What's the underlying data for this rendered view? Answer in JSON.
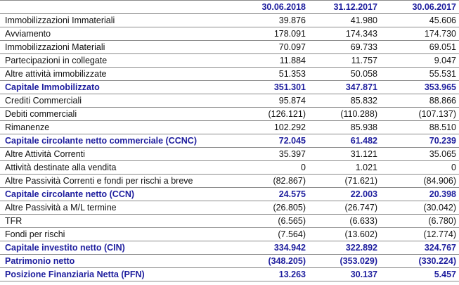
{
  "table": {
    "columns": [
      "30.06.2018",
      "31.12.2017",
      "30.06.2017"
    ],
    "rows": [
      {
        "label": "Immobilizzazioni Immateriali",
        "values": [
          "39.876",
          "41.980",
          "45.606"
        ],
        "emphasis": false
      },
      {
        "label": "Avviamento",
        "values": [
          "178.091",
          "174.343",
          "174.730"
        ],
        "emphasis": false
      },
      {
        "label": "Immobilizzazioni Materiali",
        "values": [
          "70.097",
          "69.733",
          "69.051"
        ],
        "emphasis": false
      },
      {
        "label": "Partecipazioni in collegate",
        "values": [
          "11.884",
          "11.757",
          "9.047"
        ],
        "emphasis": false
      },
      {
        "label": "Altre attività immobilizzate",
        "values": [
          "51.353",
          "50.058",
          "55.531"
        ],
        "emphasis": false
      },
      {
        "label": "Capitale Immobilizzato",
        "values": [
          "351.301",
          "347.871",
          "353.965"
        ],
        "emphasis": true
      },
      {
        "label": "Crediti Commerciali",
        "values": [
          "95.874",
          "85.832",
          "88.866"
        ],
        "emphasis": false
      },
      {
        "label": "Debiti commerciali",
        "values": [
          "(126.121)",
          "(110.288)",
          "(107.137)"
        ],
        "emphasis": false
      },
      {
        "label": "Rimanenze",
        "values": [
          "102.292",
          "85.938",
          "88.510"
        ],
        "emphasis": false
      },
      {
        "label": "Capitale circolante netto commerciale (CCNC)",
        "values": [
          "72.045",
          "61.482",
          "70.239"
        ],
        "emphasis": true
      },
      {
        "label": "Altre Attività Correnti",
        "values": [
          "35.397",
          "31.121",
          "35.065"
        ],
        "emphasis": false
      },
      {
        "label": "Attività destinate alla vendita",
        "values": [
          "0",
          "1.021",
          "0"
        ],
        "emphasis": false
      },
      {
        "label": "Altre Passività Correnti e fondi per rischi a breve",
        "values": [
          "(82.867)",
          "(71.621)",
          "(84.906)"
        ],
        "emphasis": false
      },
      {
        "label": "Capitale circolante netto (CCN)",
        "values": [
          "24.575",
          "22.003",
          "20.398"
        ],
        "emphasis": true
      },
      {
        "label": "Altre Passività a M/L termine",
        "values": [
          "(26.805)",
          "(26.747)",
          "(30.042)"
        ],
        "emphasis": false
      },
      {
        "label": "TFR",
        "values": [
          "(6.565)",
          "(6.633)",
          "(6.780)"
        ],
        "emphasis": false
      },
      {
        "label": "Fondi per rischi",
        "values": [
          "(7.564)",
          "(13.602)",
          "(12.774)"
        ],
        "emphasis": false
      },
      {
        "label": "Capitale investito netto (CIN)",
        "values": [
          "334.942",
          "322.892",
          "324.767"
        ],
        "emphasis": true
      },
      {
        "label": "Patrimonio netto",
        "values": [
          "(348.205)",
          "(353.029)",
          "(330.224)"
        ],
        "emphasis": true
      },
      {
        "label": "Posizione Finanziaria Netta (PFN)",
        "values": [
          "13.263",
          "30.137",
          "5.457"
        ],
        "emphasis": true
      }
    ]
  },
  "colors": {
    "accent_blue": "#1e1e9e",
    "line_gray": "#8a8a8a",
    "text_black": "#111111",
    "background": "#ffffff"
  }
}
